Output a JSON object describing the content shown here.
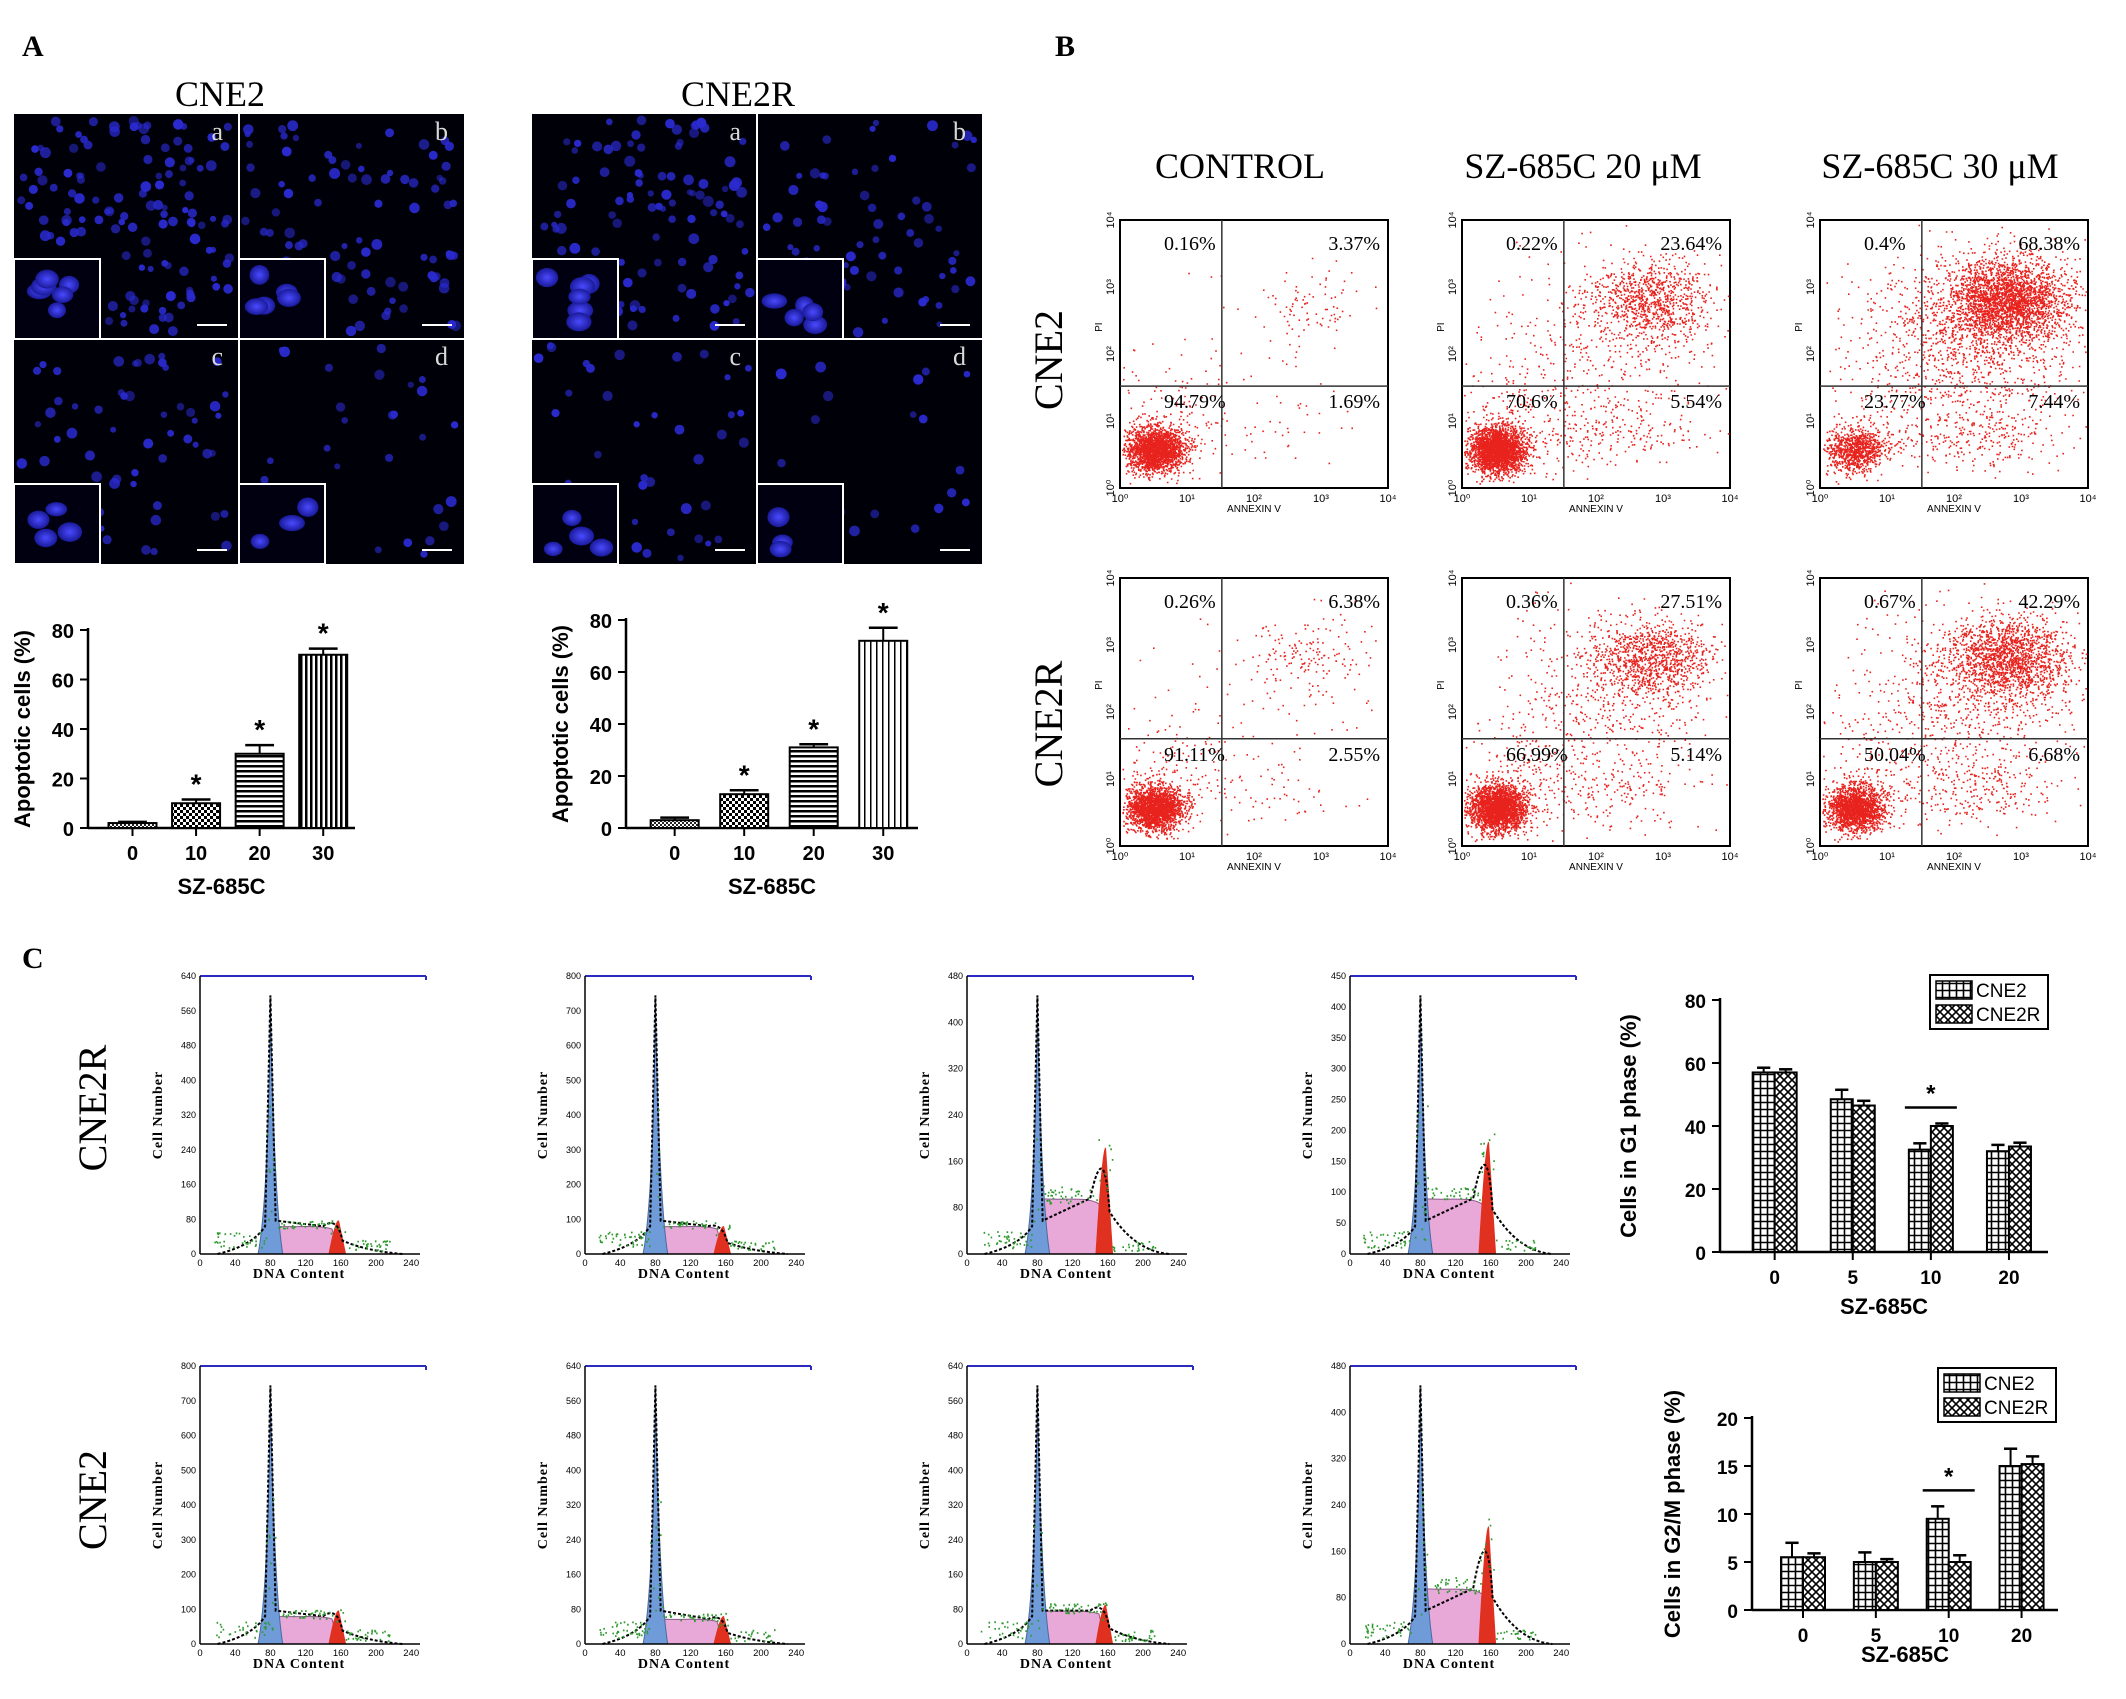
{
  "panel_labels": {
    "A": "A",
    "B": "B",
    "C": "C"
  },
  "panel_a": {
    "micrographs": [
      {
        "title": "CNE2",
        "quadrant_labels": [
          "a",
          "b",
          "c",
          "d"
        ]
      },
      {
        "title": "CNE2R",
        "quadrant_labels": [
          "a",
          "b",
          "c",
          "d"
        ]
      }
    ]
  },
  "panel_b": {
    "column_titles": [
      "CONTROL",
      "SZ-685C 20 μM",
      "SZ-685C 30 μM"
    ],
    "row_titles": [
      "CNE2",
      "CNE2R"
    ],
    "x_axis_label": "ANNEXIN V",
    "y_axis_label": "PI",
    "tick_labels": [
      "10⁰",
      "10¹",
      "10²",
      "10³",
      "10⁴"
    ],
    "quadrants": [
      [
        {
          "ul": "0.16%",
          "ur": "3.37%",
          "ll": "94.79%",
          "lr": "1.69%"
        },
        {
          "ul": "0.22%",
          "ur": "23.64%",
          "ll": "70.6%",
          "lr": "5.54%"
        },
        {
          "ul": "0.4%",
          "ur": "68.38%",
          "ll": "23.77%",
          "lr": "7.44%"
        }
      ],
      [
        {
          "ul": "0.26%",
          "ur": "6.38%",
          "ll": "91.11%",
          "lr": "2.55%"
        },
        {
          "ul": "0.36%",
          "ur": "27.51%",
          "ll": "66.99%",
          "lr": "5.14%"
        },
        {
          "ul": "0.67%",
          "ur": "42.29%",
          "ll": "50.04%",
          "lr": "6.68%"
        }
      ]
    ]
  },
  "panel_c": {
    "row_titles": [
      "CNE2R",
      "CNE2"
    ],
    "y_axis_label": "Cell Number",
    "x_axis_label": "DNA Content",
    "x_tick_labels": [
      "0",
      "40",
      "80",
      "120",
      "160",
      "200",
      "240"
    ],
    "histogram_y_ticks": [
      [
        "640",
        "560",
        "480",
        "400",
        "320",
        "240",
        "160",
        "80",
        "0"
      ],
      [
        "800",
        "700",
        "600",
        "500",
        "400",
        "300",
        "200",
        "100",
        "0"
      ],
      [
        "480",
        "400",
        "320",
        "240",
        "160",
        "80",
        "0"
      ],
      [
        "450",
        "400",
        "350",
        "300",
        "250",
        "200",
        "150",
        "100",
        "50",
        "0"
      ],
      [
        "800",
        "700",
        "600",
        "500",
        "400",
        "300",
        "200",
        "100",
        "0"
      ],
      [
        "640",
        "560",
        "480",
        "400",
        "320",
        "240",
        "160",
        "80",
        "0"
      ],
      [
        "640",
        "560",
        "480",
        "400",
        "320",
        "240",
        "160",
        "80",
        "0"
      ],
      [
        "480",
        "400",
        "320",
        "240",
        "160",
        "80",
        "0"
      ]
    ]
  },
  "colors": {
    "flow_dot": "#e8231e",
    "g1_peak": "#6f9bd8",
    "s_phase": "#e8a8d8",
    "g2_peak": "#e03020",
    "fit_dots": "#2f9a2f",
    "frame_blue": "#2b2bc0",
    "nuclei": "#2a2ad0"
  },
  "chart_data": [
    {
      "type": "bar",
      "title": "CNE2",
      "xlabel": "SZ-685C",
      "ylabel": "Apoptotic cells (%)",
      "categories": [
        "0",
        "10",
        "20",
        "30"
      ],
      "values": [
        2,
        10,
        30,
        70
      ],
      "errors": [
        0.5,
        1.5,
        3.5,
        2.5
      ],
      "significance": [
        "",
        "*",
        "*",
        "*"
      ],
      "ylim": [
        0,
        80
      ],
      "yticks": [
        "0",
        "20",
        "40",
        "60",
        "80"
      ]
    },
    {
      "type": "bar",
      "title": "CNE2R",
      "xlabel": "SZ-685C",
      "ylabel": "Apoptotic cells (%)",
      "categories": [
        "0",
        "10",
        "20",
        "30"
      ],
      "values": [
        3,
        13,
        31,
        72
      ],
      "errors": [
        1,
        1.5,
        1.2,
        5
      ],
      "significance": [
        "",
        "*",
        "*",
        "*"
      ],
      "ylim": [
        0,
        80
      ],
      "yticks": [
        "0",
        "20",
        "40",
        "60",
        "80"
      ]
    },
    {
      "type": "bar",
      "xlabel": "SZ-685C",
      "ylabel": "Cells in G1 phase  (%)",
      "categories": [
        "0",
        "5",
        "10",
        "20"
      ],
      "series": [
        {
          "name": "CNE2",
          "values": [
            57,
            48.5,
            32.5,
            32
          ],
          "errors": [
            1.5,
            3,
            2,
            2
          ]
        },
        {
          "name": "CNE2R",
          "values": [
            57,
            46.5,
            40,
            33.5
          ],
          "errors": [
            1,
            1.5,
            0.8,
            1.2
          ]
        }
      ],
      "significance_bracket": {
        "category": "10",
        "label": "*"
      },
      "ylim": [
        0,
        80
      ],
      "yticks": [
        "0",
        "20",
        "40",
        "60",
        "80"
      ],
      "legend": "top-right"
    },
    {
      "type": "bar",
      "xlabel": "SZ-685C",
      "ylabel": "Cells in G2/M phase  (%)",
      "categories": [
        "0",
        "5",
        "10",
        "20"
      ],
      "series": [
        {
          "name": "CNE2",
          "values": [
            5.5,
            5,
            9.5,
            15
          ],
          "errors": [
            1.5,
            1,
            1.3,
            1.8
          ]
        },
        {
          "name": "CNE2R",
          "values": [
            5.5,
            5,
            5,
            15.2
          ],
          "errors": [
            0.4,
            0.3,
            0.7,
            0.8
          ]
        }
      ],
      "significance_bracket": {
        "category": "10",
        "label": "*"
      },
      "ylim": [
        0,
        20
      ],
      "yticks": [
        "0",
        "5",
        "10",
        "15",
        "20"
      ],
      "legend": "top-right"
    }
  ]
}
